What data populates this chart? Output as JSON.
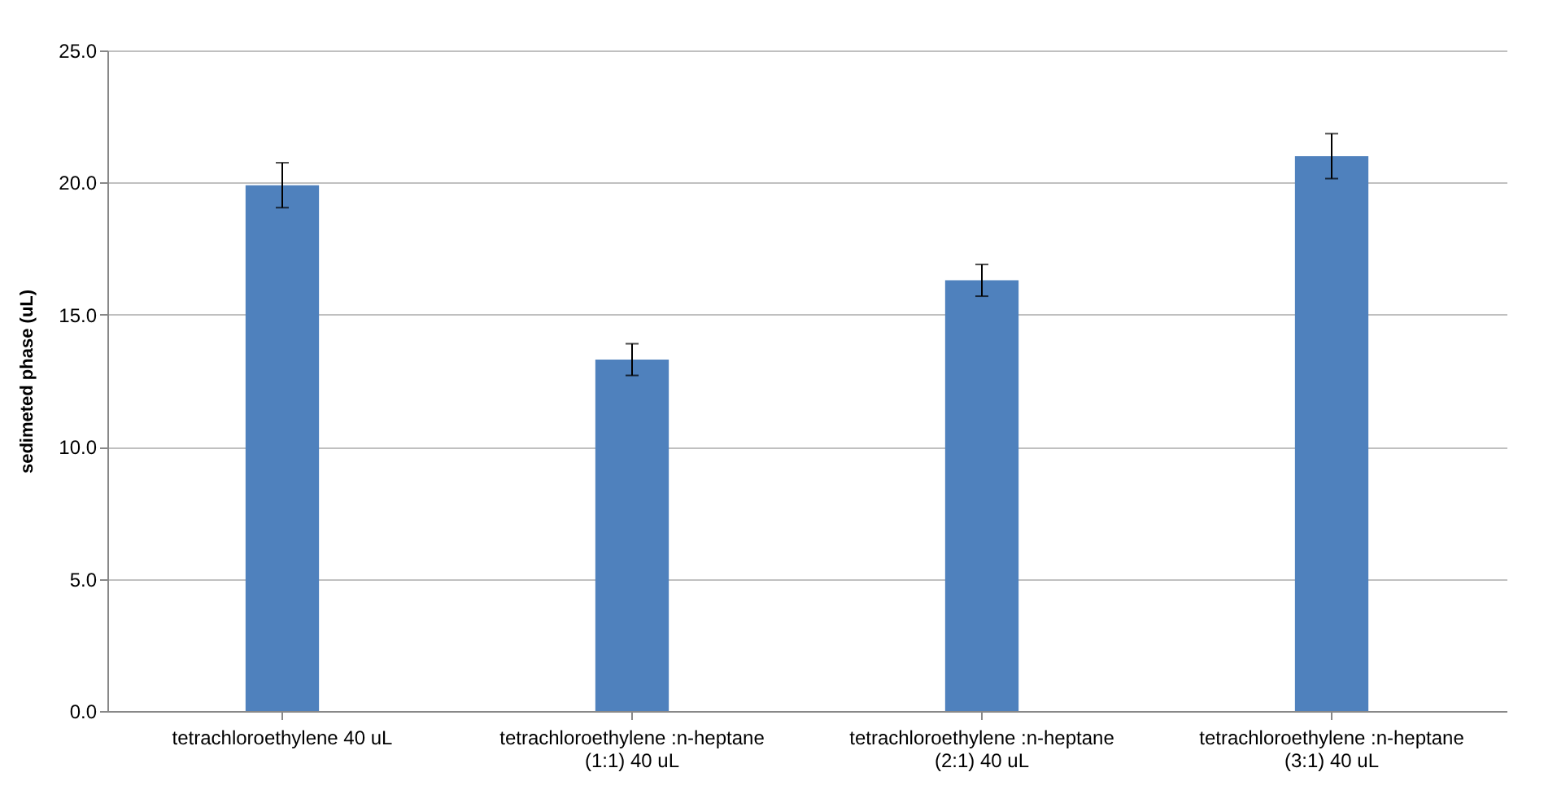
{
  "chart_data": {
    "type": "bar",
    "ylabel": "sedimeted phase (uL)",
    "categories": [
      "tetrachloroethylene 40 uL",
      "tetrachloroethylene :n-heptane (1:1) 40 uL",
      "tetrachloroethylene :n-heptane (2:1) 40 uL",
      "tetrachloroethylene :n-heptane (3:1) 40 uL"
    ],
    "values": [
      19.9,
      13.3,
      16.3,
      21.0
    ],
    "errors": [
      0.85,
      0.6,
      0.6,
      0.85
    ],
    "color": "#4f81bd",
    "ylim": [
      0,
      25
    ],
    "yticks": [
      {
        "value": 0,
        "label": "0.0"
      },
      {
        "value": 5,
        "label": "5.0"
      },
      {
        "value": 10,
        "label": "10.0"
      },
      {
        "value": 15,
        "label": "15.0"
      },
      {
        "value": 20,
        "label": "20.0"
      },
      {
        "value": 25,
        "label": "25.0"
      }
    ],
    "grid": "y"
  }
}
